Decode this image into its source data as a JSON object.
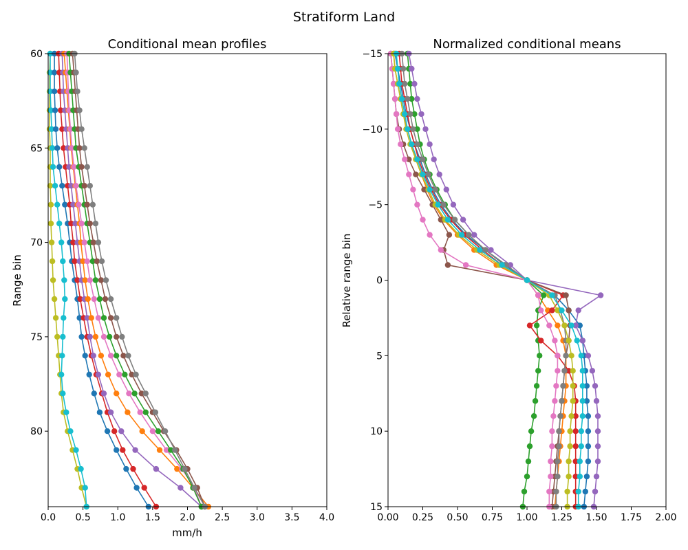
{
  "figure": {
    "suptitle": "Stratiform Land"
  },
  "chart_data": [
    {
      "type": "line",
      "title": "Conditional mean profiles",
      "xlabel": "mm/h",
      "ylabel": "Range bin",
      "xlim": [
        0,
        4
      ],
      "ylim": [
        84,
        60
      ],
      "y_inverted": true,
      "grid": false,
      "xticks": [
        "0.0",
        "0.5",
        "1.0",
        "1.5",
        "2.0",
        "2.5",
        "3.0",
        "3.5",
        "4.0"
      ],
      "yticks": [
        "60",
        "65",
        "70",
        "75",
        "80"
      ],
      "x_values_are": "rain rate per curve",
      "y": [
        60,
        61,
        62,
        63,
        64,
        65,
        66,
        67,
        68,
        69,
        70,
        71,
        72,
        73,
        74,
        75,
        76,
        77,
        78,
        79,
        80,
        81,
        82,
        83,
        84
      ],
      "series": [
        {
          "color": "#bcbd22",
          "values": [
            0.03,
            0.02,
            0.02,
            0.02,
            0.02,
            0.03,
            0.03,
            0.03,
            0.04,
            0.04,
            0.05,
            0.06,
            0.07,
            0.09,
            0.11,
            0.13,
            0.15,
            0.17,
            0.19,
            0.22,
            0.28,
            0.35,
            0.42,
            0.48,
            0.55
          ]
        },
        {
          "color": "#17becf",
          "values": [
            0.03,
            0.03,
            0.03,
            0.04,
            0.05,
            0.06,
            0.07,
            0.1,
            0.13,
            0.16,
            0.19,
            0.21,
            0.23,
            0.24,
            0.22,
            0.21,
            0.2,
            0.19,
            0.21,
            0.26,
            0.32,
            0.4,
            0.47,
            0.53,
            0.55
          ]
        },
        {
          "color": "#1f77b4",
          "values": [
            0.09,
            0.09,
            0.09,
            0.1,
            0.11,
            0.13,
            0.16,
            0.2,
            0.24,
            0.28,
            0.31,
            0.34,
            0.38,
            0.42,
            0.45,
            0.48,
            0.53,
            0.59,
            0.66,
            0.74,
            0.85,
            0.98,
            1.12,
            1.27,
            1.44
          ]
        },
        {
          "color": "#d62728",
          "values": [
            0.15,
            0.16,
            0.17,
            0.18,
            0.2,
            0.22,
            0.25,
            0.28,
            0.31,
            0.33,
            0.36,
            0.38,
            0.42,
            0.46,
            0.51,
            0.56,
            0.62,
            0.69,
            0.77,
            0.85,
            0.95,
            1.07,
            1.22,
            1.38,
            1.55
          ]
        },
        {
          "color": "#9467bd",
          "values": [
            0.2,
            0.21,
            0.22,
            0.24,
            0.26,
            0.28,
            0.3,
            0.33,
            0.36,
            0.39,
            0.42,
            0.45,
            0.48,
            0.52,
            0.56,
            0.6,
            0.65,
            0.72,
            0.8,
            0.9,
            1.05,
            1.25,
            1.55,
            1.9,
            2.2
          ]
        },
        {
          "color": "#ff7f0e",
          "values": [
            0.23,
            0.25,
            0.27,
            0.29,
            0.31,
            0.33,
            0.36,
            0.39,
            0.42,
            0.45,
            0.47,
            0.5,
            0.53,
            0.57,
            0.62,
            0.68,
            0.76,
            0.86,
            0.98,
            1.14,
            1.35,
            1.6,
            1.85,
            2.08,
            2.3
          ]
        },
        {
          "color": "#e377c2",
          "values": [
            0.27,
            0.28,
            0.29,
            0.3,
            0.32,
            0.34,
            0.37,
            0.4,
            0.44,
            0.48,
            0.52,
            0.56,
            0.6,
            0.66,
            0.72,
            0.8,
            0.9,
            1.02,
            1.16,
            1.32,
            1.5,
            1.7,
            1.92,
            2.1,
            2.2
          ]
        },
        {
          "color": "#2ca02c",
          "values": [
            0.3,
            0.32,
            0.34,
            0.36,
            0.38,
            0.4,
            0.44,
            0.48,
            0.52,
            0.56,
            0.6,
            0.64,
            0.68,
            0.74,
            0.8,
            0.88,
            0.98,
            1.1,
            1.24,
            1.4,
            1.58,
            1.76,
            1.94,
            2.08,
            2.2
          ]
        },
        {
          "color": "#8c564b",
          "values": [
            0.35,
            0.37,
            0.39,
            0.41,
            0.43,
            0.45,
            0.48,
            0.52,
            0.56,
            0.6,
            0.65,
            0.7,
            0.76,
            0.82,
            0.9,
            0.98,
            1.08,
            1.2,
            1.34,
            1.5,
            1.66,
            1.84,
            2.0,
            2.14,
            2.25
          ]
        },
        {
          "color": "#7f7f7f",
          "values": [
            0.38,
            0.4,
            0.42,
            0.45,
            0.48,
            0.52,
            0.56,
            0.6,
            0.64,
            0.68,
            0.72,
            0.77,
            0.83,
            0.9,
            0.98,
            1.06,
            1.15,
            1.26,
            1.4,
            1.54,
            1.68,
            1.82,
            1.96,
            2.1,
            2.25
          ]
        }
      ]
    },
    {
      "type": "line",
      "title": "Normalized conditional means",
      "xlabel": "",
      "ylabel": "Relative range bin",
      "xlim": [
        0,
        2
      ],
      "ylim": [
        15,
        -15
      ],
      "y_inverted": true,
      "grid": false,
      "xticks": [
        "0.00",
        "0.25",
        "0.50",
        "0.75",
        "1.00",
        "1.25",
        "1.50",
        "1.75",
        "2.00"
      ],
      "yticks": [
        "−15",
        "−10",
        "−5",
        "0",
        "5",
        "10",
        "15"
      ],
      "y": [
        -15,
        -14,
        -13,
        -12,
        -11,
        -10,
        -9,
        -8,
        -7,
        -6,
        -5,
        -4,
        -3,
        -2,
        -1,
        0,
        1,
        2,
        3,
        4,
        5,
        6,
        7,
        8,
        9,
        10,
        11,
        12,
        13,
        14,
        15
      ],
      "series": [
        {
          "color": "#1f77b4",
          "values": [
            0.05,
            0.07,
            0.09,
            0.11,
            0.13,
            0.16,
            0.19,
            0.23,
            0.27,
            0.32,
            0.38,
            0.46,
            0.56,
            0.7,
            0.84,
            1.0,
            1.2,
            1.3,
            1.38,
            1.4,
            1.41,
            1.42,
            1.43,
            1.43,
            1.44,
            1.44,
            1.44,
            1.44,
            1.43,
            1.42,
            1.41
          ]
        },
        {
          "color": "#ff7f0e",
          "values": [
            0.04,
            0.05,
            0.07,
            0.09,
            0.11,
            0.14,
            0.17,
            0.2,
            0.24,
            0.28,
            0.33,
            0.4,
            0.5,
            0.62,
            0.78,
            1.0,
            1.08,
            1.15,
            1.22,
            1.26,
            1.28,
            1.28,
            1.28,
            1.27,
            1.26,
            1.25,
            1.24,
            1.23,
            1.22,
            1.21,
            1.2
          ]
        },
        {
          "color": "#2ca02c",
          "values": [
            0.14,
            0.15,
            0.16,
            0.17,
            0.19,
            0.21,
            0.23,
            0.26,
            0.3,
            0.35,
            0.41,
            0.48,
            0.58,
            0.7,
            0.85,
            1.0,
            1.12,
            1.08,
            1.07,
            1.08,
            1.09,
            1.08,
            1.07,
            1.06,
            1.05,
            1.03,
            1.02,
            1.01,
            1.0,
            0.98,
            0.97
          ]
        },
        {
          "color": "#d62728",
          "values": [
            0.08,
            0.09,
            0.1,
            0.12,
            0.14,
            0.16,
            0.19,
            0.22,
            0.26,
            0.31,
            0.37,
            0.45,
            0.55,
            0.68,
            0.82,
            1.0,
            1.26,
            1.18,
            1.02,
            1.1,
            1.22,
            1.3,
            1.34,
            1.35,
            1.35,
            1.35,
            1.35,
            1.35,
            1.35,
            1.35,
            1.35
          ]
        },
        {
          "color": "#9467bd",
          "values": [
            0.15,
            0.17,
            0.19,
            0.21,
            0.24,
            0.27,
            0.3,
            0.33,
            0.37,
            0.42,
            0.47,
            0.54,
            0.62,
            0.74,
            0.88,
            1.0,
            1.53,
            1.37,
            1.35,
            1.4,
            1.44,
            1.47,
            1.49,
            1.5,
            1.51,
            1.51,
            1.51,
            1.51,
            1.5,
            1.49,
            1.48
          ]
        },
        {
          "color": "#8c564b",
          "values": [
            0.02,
            0.03,
            0.04,
            0.05,
            0.06,
            0.08,
            0.11,
            0.15,
            0.2,
            0.26,
            0.32,
            0.38,
            0.44,
            0.4,
            0.43,
            1.0,
            1.28,
            1.3,
            1.31,
            1.3,
            1.28,
            1.27,
            1.26,
            1.25,
            1.24,
            1.23,
            1.22,
            1.21,
            1.2,
            1.19,
            1.18
          ]
        },
        {
          "color": "#e377c2",
          "values": [
            0.02,
            0.03,
            0.04,
            0.05,
            0.06,
            0.07,
            0.09,
            0.12,
            0.15,
            0.18,
            0.21,
            0.25,
            0.3,
            0.38,
            0.56,
            1.0,
            1.08,
            1.1,
            1.16,
            1.2,
            1.22,
            1.22,
            1.21,
            1.2,
            1.19,
            1.18,
            1.18,
            1.17,
            1.17,
            1.16,
            1.16
          ]
        },
        {
          "color": "#7f7f7f",
          "values": [
            0.1,
            0.11,
            0.12,
            0.14,
            0.16,
            0.18,
            0.21,
            0.25,
            0.29,
            0.34,
            0.4,
            0.48,
            0.58,
            0.7,
            0.85,
            1.0,
            1.2,
            1.24,
            1.27,
            1.28,
            1.28,
            1.27,
            1.26,
            1.25,
            1.24,
            1.23,
            1.23,
            1.22,
            1.22,
            1.21,
            1.21
          ]
        },
        {
          "color": "#bcbd22",
          "values": [
            0.04,
            0.05,
            0.07,
            0.09,
            0.11,
            0.13,
            0.16,
            0.2,
            0.24,
            0.29,
            0.34,
            0.41,
            0.51,
            0.64,
            0.8,
            1.0,
            1.16,
            1.22,
            1.27,
            1.3,
            1.32,
            1.33,
            1.33,
            1.33,
            1.32,
            1.31,
            1.31,
            1.3,
            1.3,
            1.29,
            1.29
          ]
        },
        {
          "color": "#17becf",
          "values": [
            0.06,
            0.07,
            0.08,
            0.1,
            0.12,
            0.14,
            0.17,
            0.21,
            0.25,
            0.3,
            0.36,
            0.43,
            0.53,
            0.66,
            0.82,
            1.0,
            1.18,
            1.25,
            1.32,
            1.36,
            1.39,
            1.4,
            1.4,
            1.4,
            1.4,
            1.39,
            1.39,
            1.38,
            1.38,
            1.37,
            1.37
          ]
        }
      ]
    }
  ]
}
